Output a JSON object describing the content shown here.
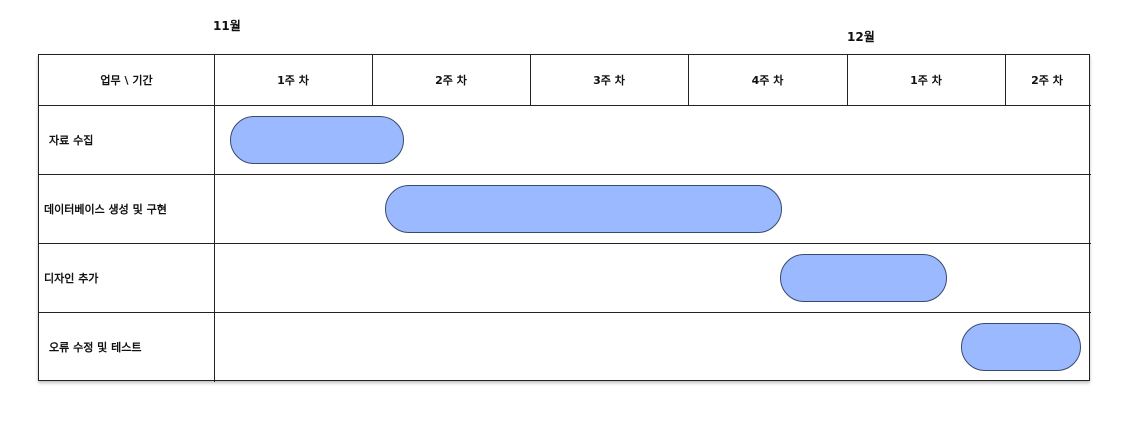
{
  "months": {
    "nov": "11월",
    "dec": "12월"
  },
  "header": {
    "corner": "업무 \\ 기간",
    "weeks": [
      "1주 차",
      "2주 차",
      "3주 차",
      "4주 차",
      "1주 차",
      "2주 차"
    ]
  },
  "tasks": [
    {
      "label": "자료 수집",
      "start_week": 0.1,
      "end_week": 1.2
    },
    {
      "label": "데이터베이스 생성 및 구현",
      "start_week": 1.08,
      "end_week": 3.59
    },
    {
      "label": "디자인 추가",
      "start_week": 3.58,
      "end_week": 4.63
    },
    {
      "label": "오류 수정 및 테스트",
      "start_week": 4.72,
      "end_week": 5.91
    }
  ],
  "colors": {
    "bar_fill": "#9bb9ff",
    "bar_border": "#3a4a6a",
    "grid": "#222222"
  }
}
